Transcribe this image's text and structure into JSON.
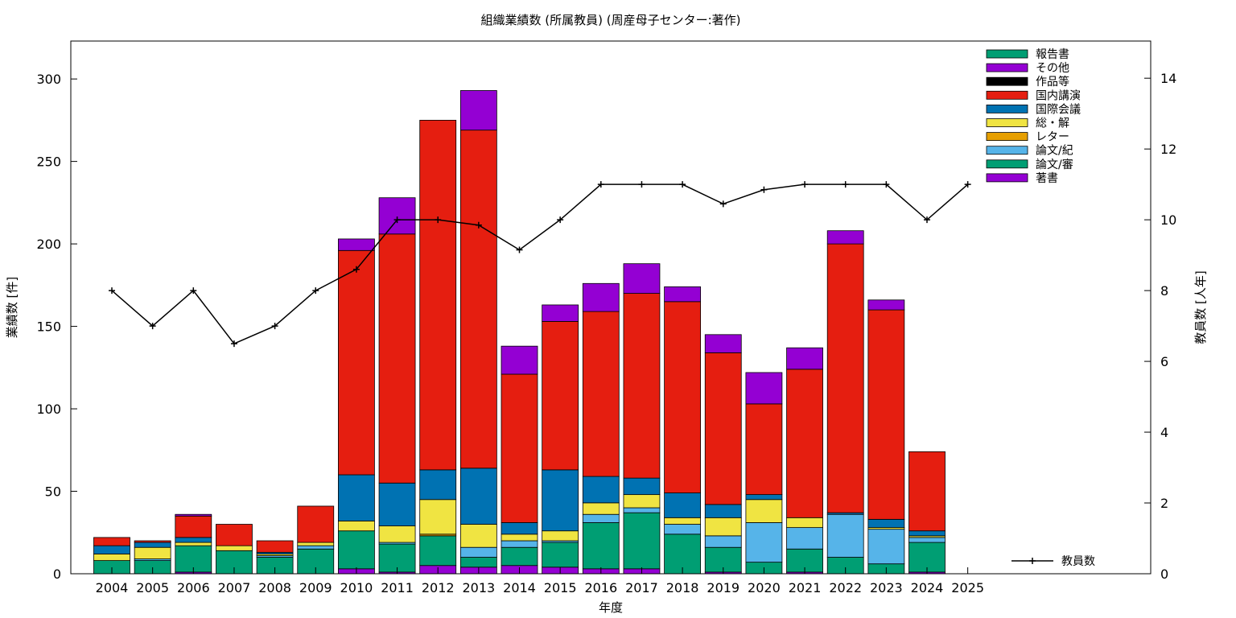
{
  "chart_data": {
    "type": "bar",
    "stacked": true,
    "title": "組織業績数 (所属教員) (周産母子センター:著作)",
    "xlabel": "年度",
    "ylabel": "業績数 [件]",
    "y2label": "教員数 [人年]",
    "categories": [
      "2004",
      "2005",
      "2006",
      "2007",
      "2008",
      "2009",
      "2010",
      "2011",
      "2012",
      "2013",
      "2014",
      "2015",
      "2016",
      "2017",
      "2018",
      "2019",
      "2020",
      "2021",
      "2022",
      "2023",
      "2024",
      "2025"
    ],
    "ylim": [
      0,
      323
    ],
    "y2lim": [
      0,
      15.05
    ],
    "yticks": [
      0,
      50,
      100,
      150,
      200,
      250,
      300
    ],
    "y2ticks": [
      0,
      2,
      4,
      6,
      8,
      10,
      12,
      14
    ],
    "grid": false,
    "legend_position": "top-right",
    "series": [
      {
        "name": "著書",
        "color": "#9400d3",
        "values": [
          0,
          0,
          1,
          0,
          0,
          0,
          3,
          1,
          5,
          4,
          5,
          4,
          3,
          3,
          0,
          1,
          0,
          1,
          0,
          0,
          1,
          0
        ]
      },
      {
        "name": "論文/審",
        "color": "#009e73",
        "values": [
          8,
          8,
          16,
          14,
          10,
          15,
          23,
          17,
          18,
          6,
          11,
          15,
          28,
          34,
          24,
          15,
          7,
          14,
          10,
          6,
          18,
          0
        ]
      },
      {
        "name": "論文/紀",
        "color": "#56b4e9",
        "values": [
          0,
          1,
          0,
          0,
          1,
          2,
          0,
          1,
          0,
          6,
          4,
          1,
          5,
          3,
          6,
          7,
          24,
          13,
          26,
          21,
          3,
          0
        ]
      },
      {
        "name": "レター",
        "color": "#e69f00",
        "values": [
          0,
          0,
          0,
          0,
          0,
          0,
          0,
          0,
          1,
          0,
          0,
          0,
          0,
          0,
          0,
          0,
          0,
          0,
          0,
          0,
          0,
          0
        ]
      },
      {
        "name": "総・解",
        "color": "#f0e442",
        "values": [
          4,
          7,
          2,
          3,
          1,
          2,
          6,
          10,
          21,
          14,
          4,
          6,
          7,
          8,
          4,
          11,
          14,
          6,
          0,
          1,
          1,
          0
        ]
      },
      {
        "name": "国際会議",
        "color": "#0072b2",
        "values": [
          5,
          3,
          3,
          0,
          1,
          0,
          28,
          26,
          18,
          34,
          7,
          37,
          16,
          10,
          15,
          8,
          3,
          0,
          1,
          5,
          3,
          0
        ]
      },
      {
        "name": "国内講演",
        "color": "#e51e10",
        "values": [
          5,
          1,
          13,
          13,
          7,
          22,
          136,
          151,
          212,
          205,
          90,
          90,
          100,
          112,
          116,
          92,
          55,
          90,
          163,
          127,
          48,
          0
        ]
      },
      {
        "name": "作品等",
        "color": "#000000",
        "values": [
          0,
          0,
          0,
          0,
          0,
          0,
          0,
          0,
          0,
          0,
          0,
          0,
          0,
          0,
          0,
          0,
          0,
          0,
          0,
          0,
          0,
          0
        ]
      },
      {
        "name": "その他",
        "color": "#9400d3",
        "values": [
          0,
          0,
          1,
          0,
          0,
          0,
          7,
          22,
          0,
          24,
          17,
          10,
          17,
          18,
          9,
          11,
          19,
          13,
          8,
          6,
          0,
          0
        ]
      },
      {
        "name": "報告書",
        "color": "#009e73",
        "values": [
          0,
          0,
          0,
          0,
          0,
          0,
          0,
          0,
          0,
          0,
          0,
          0,
          0,
          0,
          0,
          0,
          0,
          0,
          0,
          0,
          0,
          0
        ]
      }
    ],
    "line": {
      "name": "教員数",
      "color": "#000000",
      "axis": "right",
      "values": [
        8,
        7,
        8,
        6.5,
        7,
        8,
        8.6,
        10,
        10,
        9.85,
        9.15,
        10,
        11,
        11,
        11,
        10.45,
        10.85,
        11,
        11,
        11,
        10,
        11
      ]
    }
  }
}
